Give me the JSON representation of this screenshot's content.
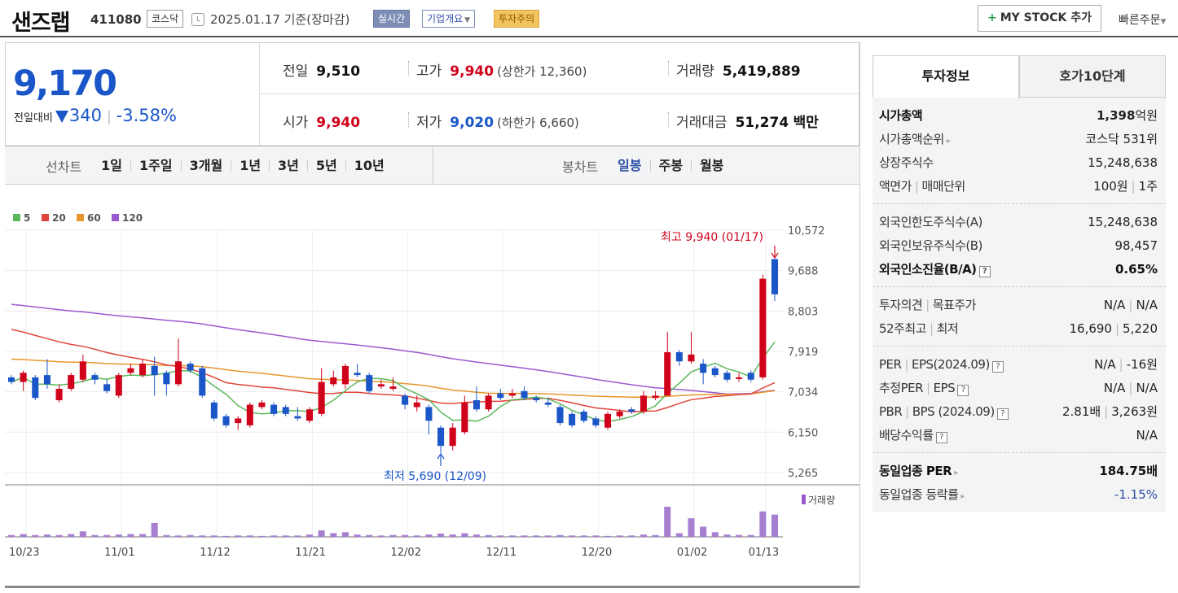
{
  "header": {
    "stock_name": "샌즈랩",
    "stock_code": "411080",
    "market_tag": "코스닥",
    "date_text": "2025.01.17 기준(장마감)",
    "realtime_label": "실시간",
    "company_label": "기업개요",
    "warning_label": "투자주의",
    "mystock_label": "MY STOCK 추가",
    "quick_order_label": "빠른주문"
  },
  "price": {
    "current": "9,170",
    "change_label": "전일대비",
    "change_value": "340",
    "change_pct": "-3.58%",
    "direction": "down",
    "prev_close_label": "전일",
    "prev_close": "9,510",
    "high_label": "고가",
    "high": "9,940",
    "upper_limit": "(상한가 12,360)",
    "volume_label": "거래량",
    "volume": "5,419,889",
    "open_label": "시가",
    "open": "9,940",
    "low_label": "저가",
    "low": "9,020",
    "lower_limit": "(하한가 6,660)",
    "amount_label": "거래대금",
    "amount": "51,274",
    "amount_unit": "백만"
  },
  "colors": {
    "up": "#d0021b",
    "down": "#1a56c8",
    "ma5": "#5cb85c",
    "ma20": "#e0463a",
    "ma60": "#e8962d",
    "ma120": "#9b59d0"
  },
  "chart_tabs": {
    "line_label": "선차트",
    "line_items": [
      "1일",
      "1주일",
      "3개월",
      "1년",
      "3년",
      "5년",
      "10년"
    ],
    "candle_label": "봉차트",
    "candle_items": [
      "일봉",
      "주봉",
      "월봉"
    ],
    "active_candle": "일봉"
  },
  "chart_data": {
    "type": "candlestick",
    "legend": [
      "5",
      "20",
      "60",
      "120"
    ],
    "y_ticks": [
      "10,572",
      "9,688",
      "8,803",
      "7,919",
      "7,034",
      "6,150",
      "5,265"
    ],
    "ylim": [
      5265,
      10572
    ],
    "x_ticks": [
      "10/23",
      "11/01",
      "11/12",
      "11/21",
      "12/02",
      "12/11",
      "12/20",
      "01/02",
      "01/13"
    ],
    "high_annotation": "최고 9,940 (01/17)",
    "low_annotation": "최저 5,690 (12/09)",
    "volume_label": "거래량",
    "candles": [
      {
        "o": 7350,
        "c": 7250,
        "h": 7400,
        "l": 7200
      },
      {
        "o": 7250,
        "c": 7450,
        "h": 7500,
        "l": 7050
      },
      {
        "o": 7350,
        "c": 6900,
        "h": 7400,
        "l": 6850
      },
      {
        "o": 7400,
        "c": 7200,
        "h": 7750,
        "l": 7100
      },
      {
        "o": 6850,
        "c": 7100,
        "h": 7200,
        "l": 6800
      },
      {
        "o": 7100,
        "c": 7400,
        "h": 7450,
        "l": 7050
      },
      {
        "o": 7300,
        "c": 7700,
        "h": 7850,
        "l": 7250
      },
      {
        "o": 7400,
        "c": 7300,
        "h": 7450,
        "l": 7200
      },
      {
        "o": 7200,
        "c": 7050,
        "h": 7300,
        "l": 7000
      },
      {
        "o": 6950,
        "c": 7400,
        "h": 7450,
        "l": 6900
      },
      {
        "o": 7450,
        "c": 7550,
        "h": 7650,
        "l": 7400
      },
      {
        "o": 7400,
        "c": 7650,
        "h": 7750,
        "l": 7350
      },
      {
        "o": 7600,
        "c": 7400,
        "h": 7800,
        "l": 6950
      },
      {
        "o": 7450,
        "c": 7200,
        "h": 7500,
        "l": 6950
      },
      {
        "o": 7200,
        "c": 7700,
        "h": 8200,
        "l": 7150
      },
      {
        "o": 7650,
        "c": 7500,
        "h": 7700,
        "l": 7450
      },
      {
        "o": 7550,
        "c": 6950,
        "h": 7600,
        "l": 6900
      },
      {
        "o": 6800,
        "c": 6450,
        "h": 6850,
        "l": 6400
      },
      {
        "o": 6500,
        "c": 6300,
        "h": 6550,
        "l": 6250
      },
      {
        "o": 6350,
        "c": 6450,
        "h": 6500,
        "l": 6200
      },
      {
        "o": 6300,
        "c": 6750,
        "h": 6800,
        "l": 6250
      },
      {
        "o": 6700,
        "c": 6800,
        "h": 6850,
        "l": 6650
      },
      {
        "o": 6750,
        "c": 6550,
        "h": 6800,
        "l": 6500
      },
      {
        "o": 6700,
        "c": 6550,
        "h": 6750,
        "l": 6500
      },
      {
        "o": 6500,
        "c": 6450,
        "h": 6700,
        "l": 6400
      },
      {
        "o": 6400,
        "c": 6650,
        "h": 6700,
        "l": 6350
      },
      {
        "o": 6550,
        "c": 7250,
        "h": 7550,
        "l": 6500
      },
      {
        "o": 7200,
        "c": 7350,
        "h": 7500,
        "l": 7150
      },
      {
        "o": 7200,
        "c": 7600,
        "h": 7650,
        "l": 7100
      },
      {
        "o": 7450,
        "c": 7400,
        "h": 7650,
        "l": 7350
      },
      {
        "o": 7400,
        "c": 7050,
        "h": 7450,
        "l": 7000
      },
      {
        "o": 7150,
        "c": 7200,
        "h": 7300,
        "l": 7100
      },
      {
        "o": 7100,
        "c": 7150,
        "h": 7350,
        "l": 7050
      },
      {
        "o": 6950,
        "c": 6750,
        "h": 7000,
        "l": 6650
      },
      {
        "o": 6700,
        "c": 6800,
        "h": 6950,
        "l": 6600
      },
      {
        "o": 6700,
        "c": 6400,
        "h": 6750,
        "l": 6100
      },
      {
        "o": 6250,
        "c": 5850,
        "h": 6300,
        "l": 5690
      },
      {
        "o": 5850,
        "c": 6250,
        "h": 6350,
        "l": 5750
      },
      {
        "o": 6150,
        "c": 6800,
        "h": 6950,
        "l": 6100
      },
      {
        "o": 6850,
        "c": 6650,
        "h": 7150,
        "l": 6600
      },
      {
        "o": 6650,
        "c": 6950,
        "h": 7000,
        "l": 6600
      },
      {
        "o": 7000,
        "c": 6900,
        "h": 7100,
        "l": 6850
      },
      {
        "o": 6950,
        "c": 7000,
        "h": 7100,
        "l": 6900
      },
      {
        "o": 7050,
        "c": 6900,
        "h": 7150,
        "l": 6850
      },
      {
        "o": 6900,
        "c": 6850,
        "h": 6950,
        "l": 6800
      },
      {
        "o": 6800,
        "c": 6750,
        "h": 6900,
        "l": 6700
      },
      {
        "o": 6700,
        "c": 6350,
        "h": 6750,
        "l": 6300
      },
      {
        "o": 6550,
        "c": 6300,
        "h": 6600,
        "l": 6250
      },
      {
        "o": 6600,
        "c": 6400,
        "h": 6650,
        "l": 6350
      },
      {
        "o": 6450,
        "c": 6300,
        "h": 6500,
        "l": 6250
      },
      {
        "o": 6250,
        "c": 6550,
        "h": 6600,
        "l": 6200
      },
      {
        "o": 6500,
        "c": 6600,
        "h": 6650,
        "l": 6450
      },
      {
        "o": 6650,
        "c": 6600,
        "h": 6700,
        "l": 6550
      },
      {
        "o": 6600,
        "c": 6950,
        "h": 7050,
        "l": 6550
      },
      {
        "o": 6900,
        "c": 6950,
        "h": 7050,
        "l": 6850
      },
      {
        "o": 6950,
        "c": 7900,
        "h": 8350,
        "l": 6950
      },
      {
        "o": 7900,
        "c": 7700,
        "h": 7950,
        "l": 7600
      },
      {
        "o": 7700,
        "c": 7850,
        "h": 8350,
        "l": 7650
      },
      {
        "o": 7650,
        "c": 7450,
        "h": 7750,
        "l": 7200
      },
      {
        "o": 7550,
        "c": 7400,
        "h": 7600,
        "l": 7350
      },
      {
        "o": 7450,
        "c": 7300,
        "h": 7500,
        "l": 7250
      },
      {
        "o": 7350,
        "c": 7350,
        "h": 7450,
        "l": 7250
      },
      {
        "o": 7450,
        "c": 7300,
        "h": 7500,
        "l": 7250
      },
      {
        "o": 7350,
        "c": 9510,
        "h": 9600,
        "l": 7300
      },
      {
        "o": 9940,
        "c": 9170,
        "h": 9940,
        "l": 9020
      }
    ],
    "volumes": [
      0.04,
      0.06,
      0.04,
      0.05,
      0.04,
      0.06,
      0.12,
      0.04,
      0.04,
      0.05,
      0.06,
      0.06,
      0.3,
      0.04,
      0.03,
      0.04,
      0.03,
      0.03,
      0.02,
      0.03,
      0.03,
      0.02,
      0.03,
      0.03,
      0.03,
      0.05,
      0.14,
      0.08,
      0.1,
      0.05,
      0.04,
      0.03,
      0.04,
      0.04,
      0.03,
      0.05,
      0.07,
      0.05,
      0.08,
      0.05,
      0.04,
      0.03,
      0.03,
      0.03,
      0.03,
      0.03,
      0.04,
      0.03,
      0.03,
      0.03,
      0.02,
      0.03,
      0.03,
      0.05,
      0.04,
      0.65,
      0.08,
      0.4,
      0.22,
      0.1,
      0.05,
      0.04,
      0.04,
      0.55,
      0.48
    ]
  },
  "side_panel": {
    "tab1": "투자정보",
    "tab2": "호가10단계",
    "market_cap_label": "시가총액",
    "market_cap": "1,398",
    "market_cap_unit": "억원",
    "rank_label": "시가총액순위",
    "rank": "코스닥 531위",
    "shares_label": "상장주식수",
    "shares": "15,248,638",
    "face_label": "액면가",
    "unit_label": "매매단위",
    "face": "100원",
    "unit": "1주",
    "foreign_limit_label": "외국인한도주식수(A)",
    "foreign_limit": "15,248,638",
    "foreign_hold_label": "외국인보유주식수(B)",
    "foreign_hold": "98,457",
    "foreign_ratio_label": "외국인소진율(B/A)",
    "foreign_ratio": "0.65%",
    "opinion_label": "투자의견",
    "target_label": "목표주가",
    "opinion": "N/A",
    "target": "N/A",
    "w52_high_label": "52주최고",
    "w52_low_label": "최저",
    "w52_high": "16,690",
    "w52_low": "5,220",
    "per_label": "PER",
    "eps_label": "EPS(2024.09)",
    "per": "N/A",
    "eps": "-16원",
    "est_per_label": "추정PER",
    "est_eps_label": "EPS",
    "est_per": "N/A",
    "est_eps": "N/A",
    "pbr_label": "PBR",
    "bps_label": "BPS (2024.09)",
    "pbr": "2.81배",
    "bps": "3,263원",
    "div_label": "배당수익률",
    "div": "N/A",
    "ind_per_label": "동일업종 PER",
    "ind_per": "184.75배",
    "ind_chg_label": "동일업종 등락률",
    "ind_chg": "-1.15%"
  }
}
